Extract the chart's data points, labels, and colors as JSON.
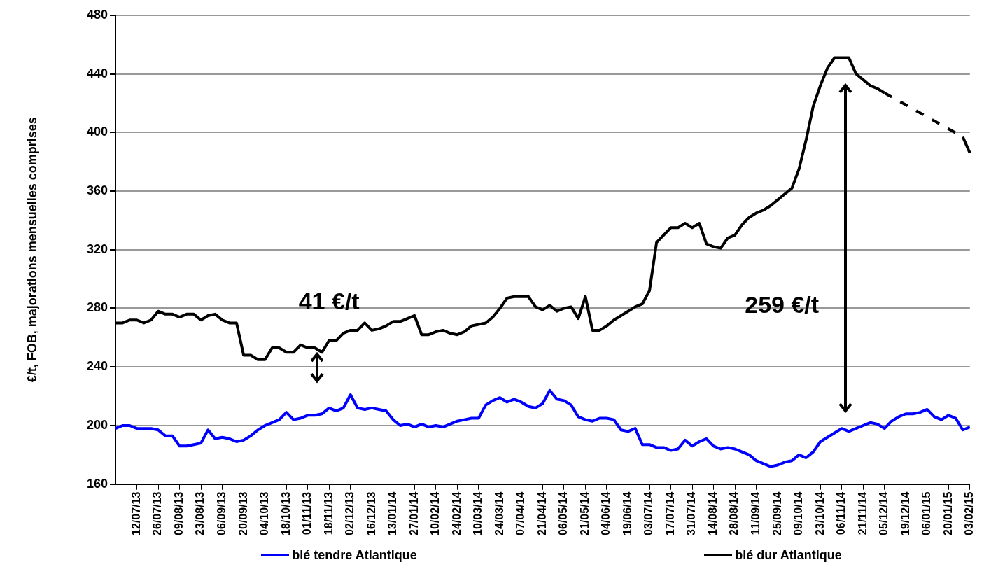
{
  "chart_data": {
    "type": "line",
    "ylabel": "€/t, FOB, majorations mensuelles comprises",
    "categories": [
      null,
      null,
      null,
      "12/07/13",
      null,
      null,
      "26/07/13",
      null,
      null,
      "09/08/13",
      null,
      null,
      "23/08/13",
      null,
      null,
      "06/09/13",
      null,
      null,
      "20/09/13",
      null,
      null,
      "04/10/13",
      null,
      null,
      "18/10/13",
      null,
      null,
      "01/11/13",
      null,
      null,
      "18/11/13",
      null,
      null,
      "02/12/13",
      null,
      null,
      "16/12/13",
      null,
      null,
      "13/01/14",
      null,
      null,
      "27/01/14",
      null,
      null,
      "10/02/14",
      null,
      null,
      "24/02/14",
      null,
      null,
      "10/03/14",
      null,
      null,
      "24/03/14",
      null,
      null,
      "07/04/14",
      null,
      null,
      "21/04/14",
      null,
      null,
      "06/05/14",
      null,
      null,
      "21/05/14",
      null,
      null,
      "04/06/14",
      null,
      null,
      "19/06/14",
      null,
      null,
      "03/07/14",
      null,
      null,
      "17/07/14",
      null,
      null,
      "31/07/14",
      null,
      null,
      "14/08/14",
      null,
      null,
      "28/08/14",
      null,
      null,
      "11/09/14",
      null,
      null,
      "25/09/14",
      null,
      null,
      "09/10/14",
      null,
      null,
      "23/10/14",
      null,
      null,
      "06/11/14",
      null,
      null,
      "21/11/14",
      null,
      null,
      "05/12/14",
      null,
      null,
      "19/12/14",
      null,
      null,
      "06/01/15",
      null,
      null,
      "20/01/15",
      null,
      null,
      "03/02/15"
    ],
    "series": [
      {
        "name": "blé tendre Atlantique",
        "color": "#0000ff",
        "values": [
          198,
          200,
          200,
          198,
          198,
          198,
          197,
          193,
          193,
          186,
          186,
          187,
          188,
          197,
          191,
          192,
          191,
          189,
          190,
          193,
          197,
          200,
          202,
          204,
          209,
          204,
          205,
          207,
          207,
          208,
          212,
          210,
          212,
          221,
          212,
          211,
          212,
          211,
          210,
          204,
          200,
          201,
          199,
          201,
          199,
          200,
          199,
          201,
          203,
          204,
          205,
          205,
          214,
          217,
          219,
          216,
          218,
          216,
          213,
          212,
          215,
          224,
          218,
          217,
          214,
          206,
          204,
          203,
          205,
          205,
          204,
          197,
          196,
          198,
          187,
          187,
          185,
          185,
          183,
          184,
          190,
          186,
          189,
          191,
          186,
          184,
          185,
          184,
          182,
          180,
          176,
          174,
          172,
          173,
          175,
          176,
          180,
          178,
          182,
          189,
          192,
          195,
          198,
          196,
          198,
          200,
          202,
          201,
          198,
          203,
          206,
          208,
          208,
          209,
          211,
          206,
          204,
          207,
          205,
          197,
          199
        ]
      },
      {
        "name": "blé dur Atlantique",
        "color": "#000000",
        "values": [
          270,
          270,
          272,
          272,
          270,
          272,
          278,
          276,
          276,
          274,
          276,
          276,
          272,
          275,
          276,
          272,
          270,
          270,
          248,
          248,
          245,
          245,
          253,
          253,
          250,
          250,
          255,
          253,
          253,
          250,
          258,
          258,
          263,
          265,
          265,
          270,
          265,
          266,
          268,
          271,
          271,
          273,
          275,
          262,
          262,
          264,
          265,
          263,
          262,
          264,
          268,
          269,
          270,
          274,
          280,
          287,
          288,
          288,
          288,
          281,
          279,
          282,
          278,
          280,
          281,
          273,
          288,
          265,
          265,
          268,
          272,
          275,
          278,
          281,
          283,
          292,
          325,
          330,
          335,
          335,
          338,
          335,
          338,
          324,
          322,
          321,
          328,
          330,
          337,
          342,
          345,
          347,
          350,
          354,
          358,
          362,
          375,
          395,
          418,
          432,
          444,
          451,
          451,
          451,
          440,
          436,
          432,
          430,
          427,
          null,
          null,
          null,
          null,
          null,
          null,
          null,
          null,
          null,
          null,
          397,
          386
        ]
      }
    ],
    "ylim": [
      160,
      480
    ],
    "yticks": [
      160,
      200,
      240,
      280,
      320,
      360,
      400,
      440,
      480
    ],
    "grid": "y",
    "legend": "bottom",
    "marker": "none",
    "line_style": "solid",
    "annotations": [
      "41 €/t",
      "259 €/t"
    ]
  }
}
